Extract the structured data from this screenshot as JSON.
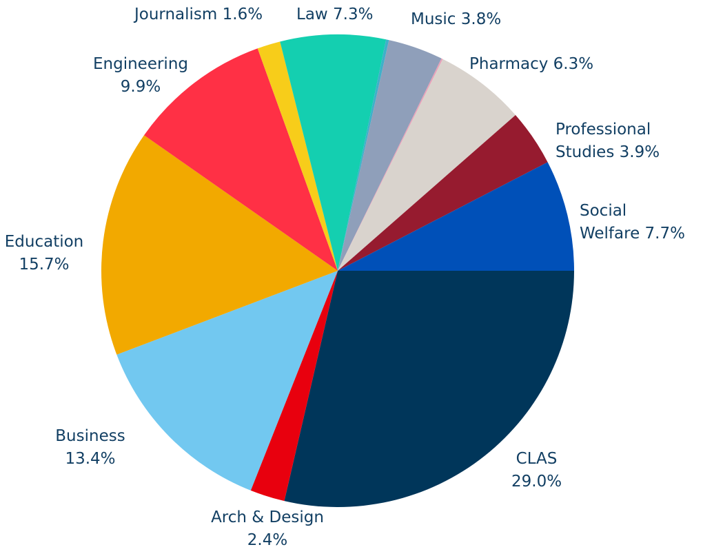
{
  "chart_data": {
    "type": "pie",
    "start": "3 o'clock, clockwise",
    "slices": [
      {
        "label": "CLAS",
        "value": 29.0,
        "color": "#00365a"
      },
      {
        "label": "Arch & Design",
        "value": 2.4,
        "color": "#e8000e"
      },
      {
        "label": "Business",
        "value": 13.4,
        "color": "#72c8f0"
      },
      {
        "label": "Education",
        "value": 15.7,
        "color": "#f2a900"
      },
      {
        "label": "Engineering",
        "value": 9.9,
        "color": "#ff3045"
      },
      {
        "label": "Journalism",
        "value": 1.6,
        "color": "#f7cd1a"
      },
      {
        "label": "Law",
        "value": 7.3,
        "color": "#14cfb0"
      },
      {
        "label": "",
        "value": 0.2,
        "color": "#3fb0c9"
      },
      {
        "label": "Music",
        "value": 3.8,
        "color": "#8f9fba"
      },
      {
        "label": "",
        "value": 0.1,
        "color": "#e8a0b8"
      },
      {
        "label": "Pharmacy",
        "value": 6.3,
        "color": "#d9d3cd"
      },
      {
        "label": "Professional Studies",
        "value": 3.9,
        "color": "#961b2f"
      },
      {
        "label": "Social Welfare",
        "value": 7.7,
        "color": "#0050b8"
      }
    ],
    "label_text": [
      [
        "CLAS",
        "29.0%"
      ],
      [
        "Arch & Design",
        "2.4%"
      ],
      [
        "Business",
        "13.4%"
      ],
      [
        "Education",
        "15.7%"
      ],
      [
        "Engineering",
        "9.9%"
      ],
      [
        "Journalism 1.6%"
      ],
      [
        "Law 7.3%"
      ],
      [],
      [
        "Music 3.8%"
      ],
      [],
      [
        "Pharmacy 6.3%"
      ],
      [
        "Professional",
        "Studies 3.9%"
      ],
      [
        "Social",
        "Welfare 7.7%"
      ]
    ]
  }
}
